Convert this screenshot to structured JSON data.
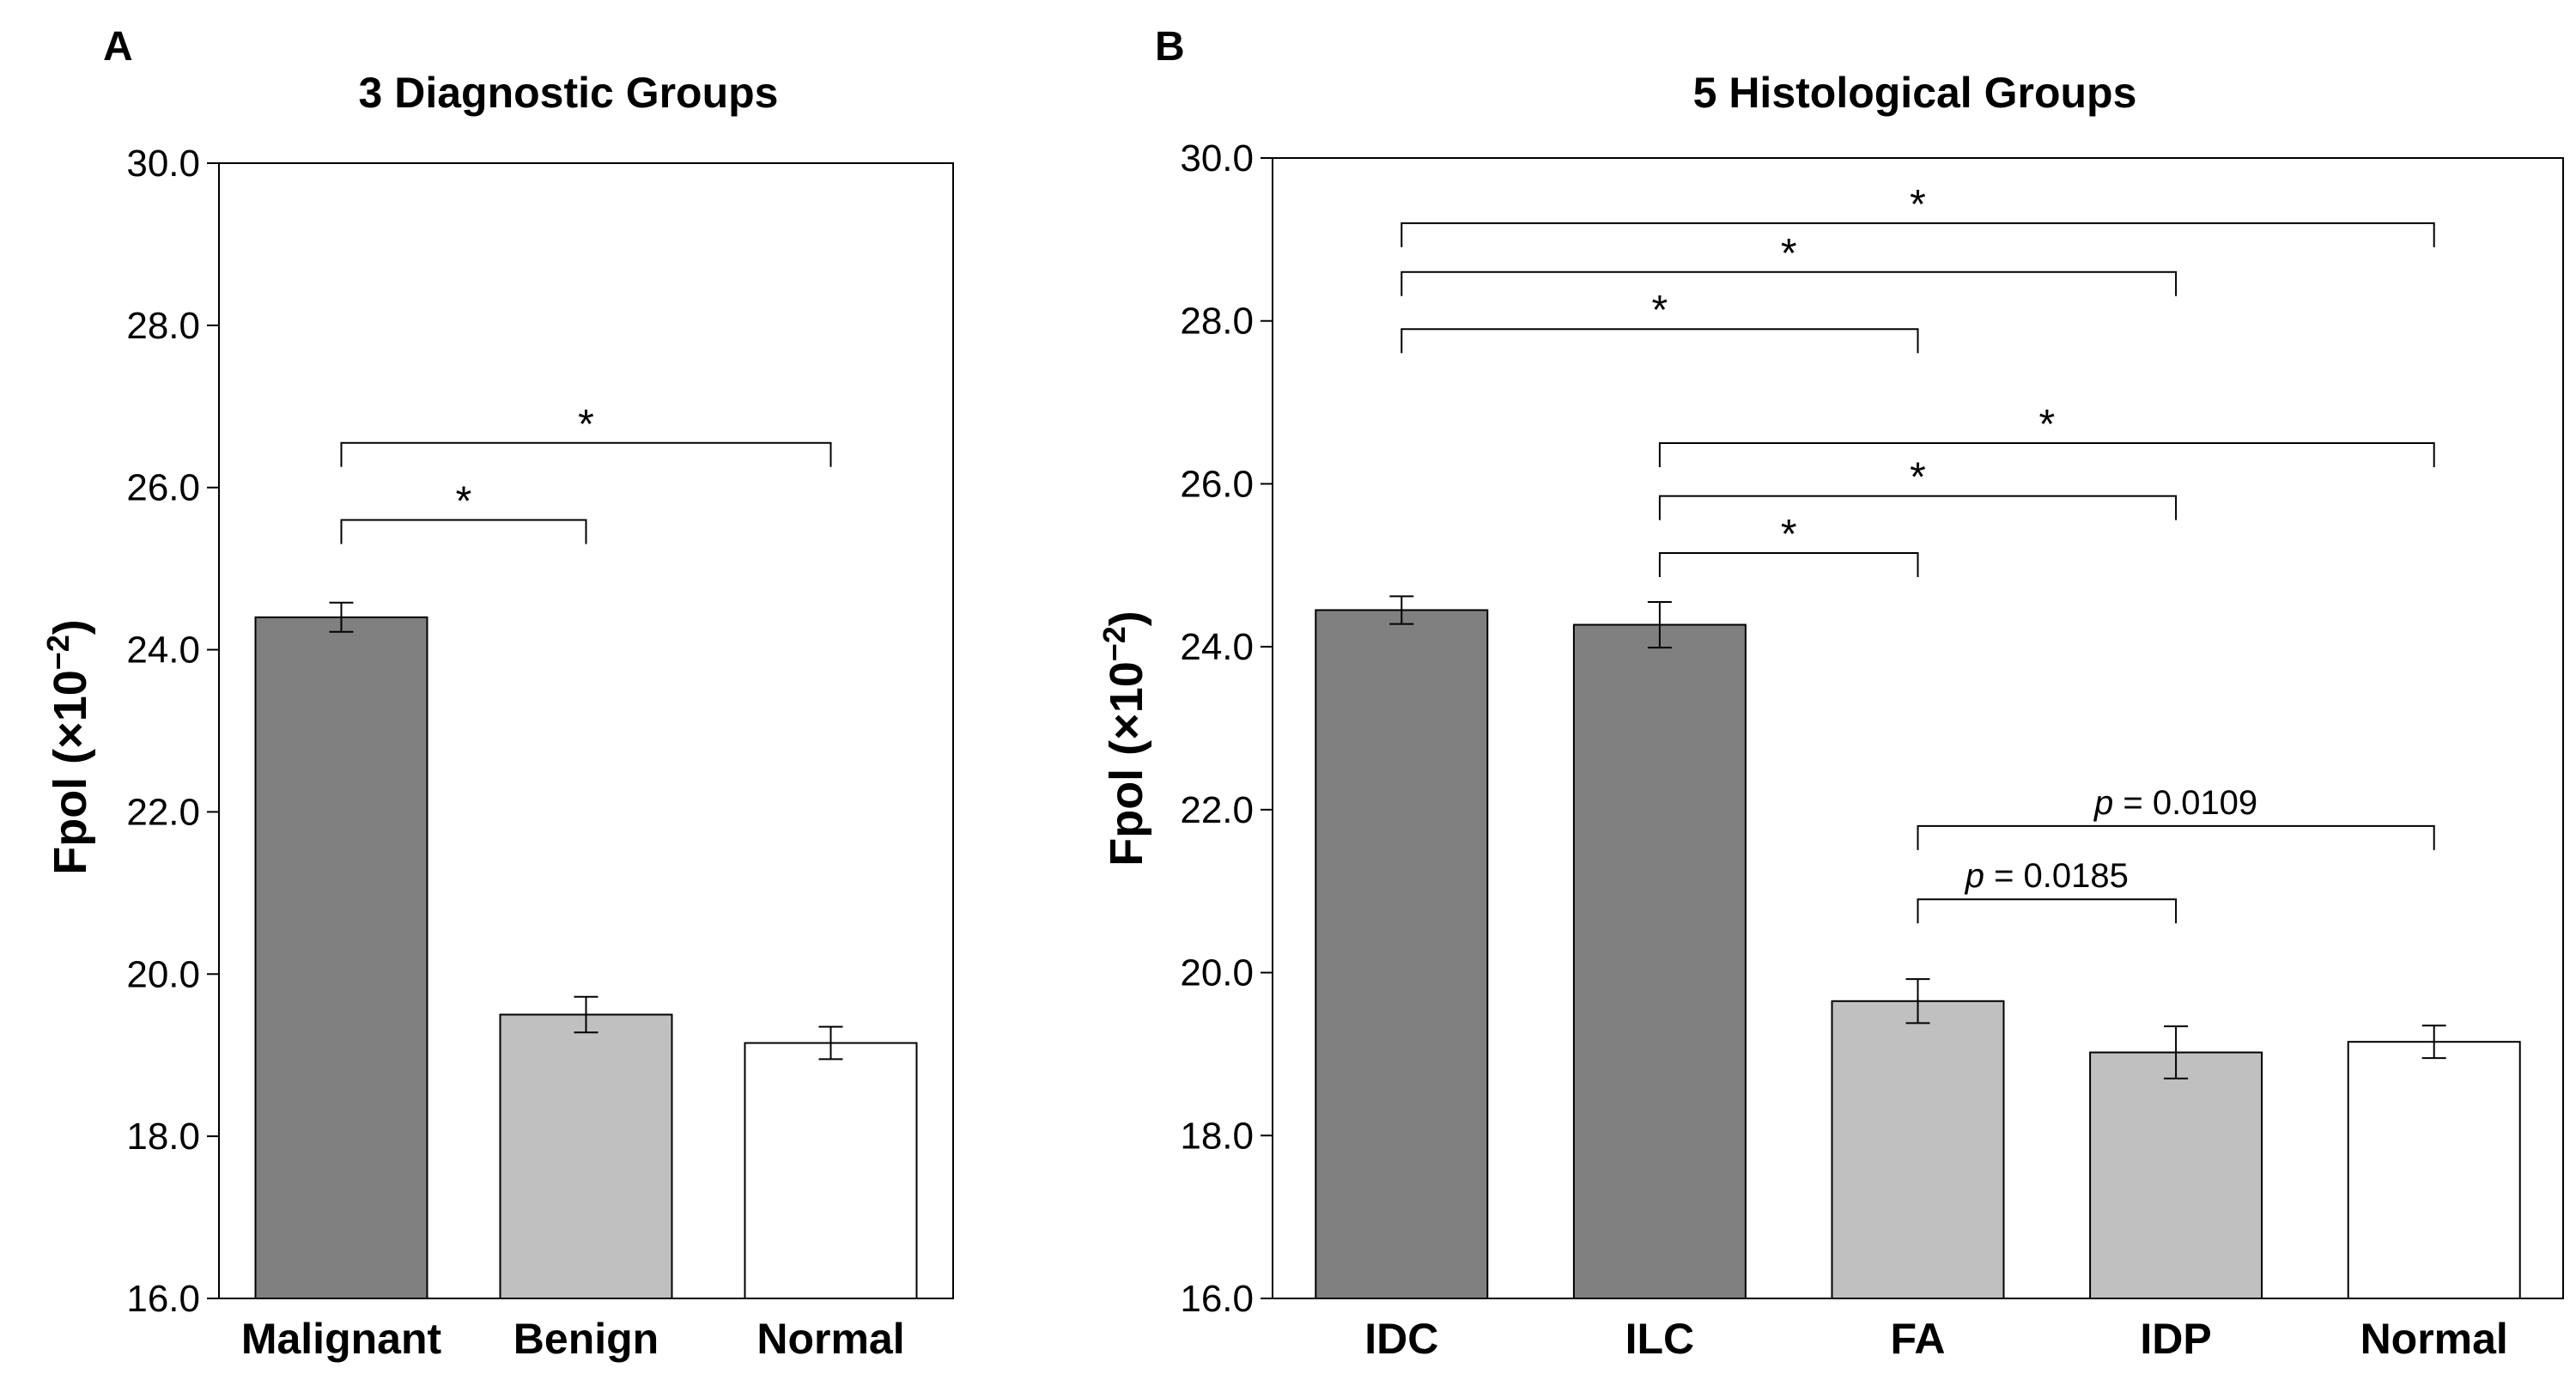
{
  "colors": {
    "malignant": "#808080",
    "benign": "#c0c0c0",
    "normal": "#ffffff",
    "stroke": "#000000"
  },
  "chart_data": [
    {
      "panel_label": "A",
      "type": "bar",
      "title": "3 Diagnostic Groups",
      "ylabel": "Fpol (×10",
      "ylabel_exponent": "−2",
      "ylabel_suffix": ")",
      "ylim": [
        16.0,
        30.0
      ],
      "yticks": [
        "16.0",
        "18.0",
        "20.0",
        "22.0",
        "24.0",
        "26.0",
        "28.0",
        "30.0"
      ],
      "categories": [
        "Malignant",
        "Benign",
        "Normal"
      ],
      "values": [
        24.4,
        19.5,
        19.15
      ],
      "errors": [
        0.18,
        0.22,
        0.2
      ],
      "fills": [
        "#808080",
        "#c0c0c0",
        "#ffffff"
      ],
      "grid": false,
      "annotations": [
        {
          "from": 0,
          "to": 1,
          "y": 25.6,
          "text": "*"
        },
        {
          "from": 0,
          "to": 2,
          "y": 26.55,
          "text": "*"
        }
      ]
    },
    {
      "panel_label": "B",
      "type": "bar",
      "title": "5 Histological Groups",
      "ylabel": "Fpol (×10",
      "ylabel_exponent": "−2",
      "ylabel_suffix": ")",
      "ylim": [
        16.0,
        30.0
      ],
      "yticks": [
        "16.0",
        "18.0",
        "20.0",
        "22.0",
        "24.0",
        "26.0",
        "28.0",
        "30.0"
      ],
      "categories": [
        "IDC",
        "ILC",
        "FA",
        "IDP",
        "Normal"
      ],
      "values": [
        24.45,
        24.27,
        19.65,
        19.02,
        19.15
      ],
      "errors": [
        0.17,
        0.28,
        0.27,
        0.32,
        0.2
      ],
      "fills": [
        "#808080",
        "#808080",
        "#c0c0c0",
        "#c0c0c0",
        "#ffffff"
      ],
      "grid": false,
      "annotations": [
        {
          "from": 0,
          "to": 4,
          "y": 29.2,
          "text": "*"
        },
        {
          "from": 0,
          "to": 3,
          "y": 28.6,
          "text": "*"
        },
        {
          "from": 0,
          "to": 2,
          "y": 27.9,
          "text": "*"
        },
        {
          "from": 1,
          "to": 4,
          "y": 26.5,
          "text": "*"
        },
        {
          "from": 1,
          "to": 3,
          "y": 25.85,
          "text": "*"
        },
        {
          "from": 1,
          "to": 2,
          "y": 25.15,
          "text": "*"
        },
        {
          "from": 2,
          "to": 4,
          "y": 21.8,
          "text": "= 0.0109",
          "italic_prefix": "p"
        },
        {
          "from": 2,
          "to": 3,
          "y": 20.9,
          "text": "= 0.0185",
          "italic_prefix": "p"
        }
      ]
    }
  ]
}
